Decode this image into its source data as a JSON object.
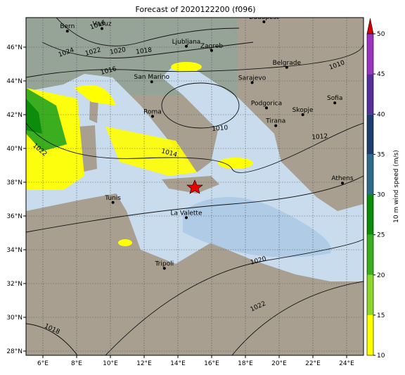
{
  "chart_data": {
    "type": "map",
    "title": "Forecast of 2020122200 (f096)",
    "xlim": [
      5,
      25
    ],
    "ylim": [
      27.75,
      47.75
    ],
    "xticks": [
      {
        "value": 6,
        "label": "6°E"
      },
      {
        "value": 8,
        "label": "8°E"
      },
      {
        "value": 10,
        "label": "10°E"
      },
      {
        "value": 12,
        "label": "12°E"
      },
      {
        "value": 14,
        "label": "14°E"
      },
      {
        "value": 16,
        "label": "16°E"
      },
      {
        "value": 18,
        "label": "18°E"
      },
      {
        "value": 20,
        "label": "20°E"
      },
      {
        "value": 22,
        "label": "22°E"
      },
      {
        "value": 24,
        "label": "24°E"
      }
    ],
    "yticks": [
      {
        "value": 28,
        "label": "28°N"
      },
      {
        "value": 30,
        "label": "30°N"
      },
      {
        "value": 32,
        "label": "32°N"
      },
      {
        "value": 34,
        "label": "34°N"
      },
      {
        "value": 36,
        "label": "36°N"
      },
      {
        "value": 38,
        "label": "38°N"
      },
      {
        "value": 40,
        "label": "40°N"
      },
      {
        "value": 42,
        "label": "42°N"
      },
      {
        "value": 44,
        "label": "44°N"
      },
      {
        "value": 46,
        "label": "46°N"
      }
    ],
    "grid": true,
    "cities": [
      {
        "name": "Bern",
        "lon": 7.45,
        "lat": 46.95
      },
      {
        "name": "Vaduz",
        "lon": 9.5,
        "lat": 47.1
      },
      {
        "name": "Budapest",
        "lon": 19.1,
        "lat": 47.5
      },
      {
        "name": "Ljubljana",
        "lon": 14.5,
        "lat": 46.05
      },
      {
        "name": "Zagreb",
        "lon": 16.0,
        "lat": 45.8
      },
      {
        "name": "Belgrade",
        "lon": 20.45,
        "lat": 44.8
      },
      {
        "name": "San Marino",
        "lon": 12.45,
        "lat": 43.95
      },
      {
        "name": "Sarajevo",
        "lon": 18.4,
        "lat": 43.9
      },
      {
        "name": "Sofia",
        "lon": 23.3,
        "lat": 42.7
      },
      {
        "name": "Podgorica",
        "lon": 19.25,
        "lat": 42.4
      },
      {
        "name": "Skopje",
        "lon": 21.4,
        "lat": 42.0
      },
      {
        "name": "Roma",
        "lon": 12.5,
        "lat": 41.9
      },
      {
        "name": "Tirana",
        "lon": 19.8,
        "lat": 41.35
      },
      {
        "name": "Athens",
        "lon": 23.75,
        "lat": 37.95
      },
      {
        "name": "Tunis",
        "lon": 10.15,
        "lat": 36.8
      },
      {
        "name": "La Valette",
        "lon": 14.5,
        "lat": 35.9
      },
      {
        "name": "Tripoli",
        "lon": 13.2,
        "lat": 32.9
      }
    ],
    "isobar_labels": [
      "1024",
      "1022",
      "1020",
      "1018",
      "1016",
      "1014",
      "1012",
      "1010",
      "1010",
      "1012",
      "1020",
      "1022",
      "1018",
      "1022",
      "1016"
    ],
    "colorbar": {
      "label": "10 m wind speed (m/s)",
      "ticks": [
        10,
        15,
        20,
        25,
        30,
        35,
        40,
        45,
        50
      ],
      "colors": [
        "#ffff00",
        "#8fd62a",
        "#3aae1e",
        "#0b8c0b",
        "#2d6b8c",
        "#1d3d6e",
        "#55309a",
        "#9a34bf"
      ],
      "extend_color": "#d40000"
    }
  }
}
